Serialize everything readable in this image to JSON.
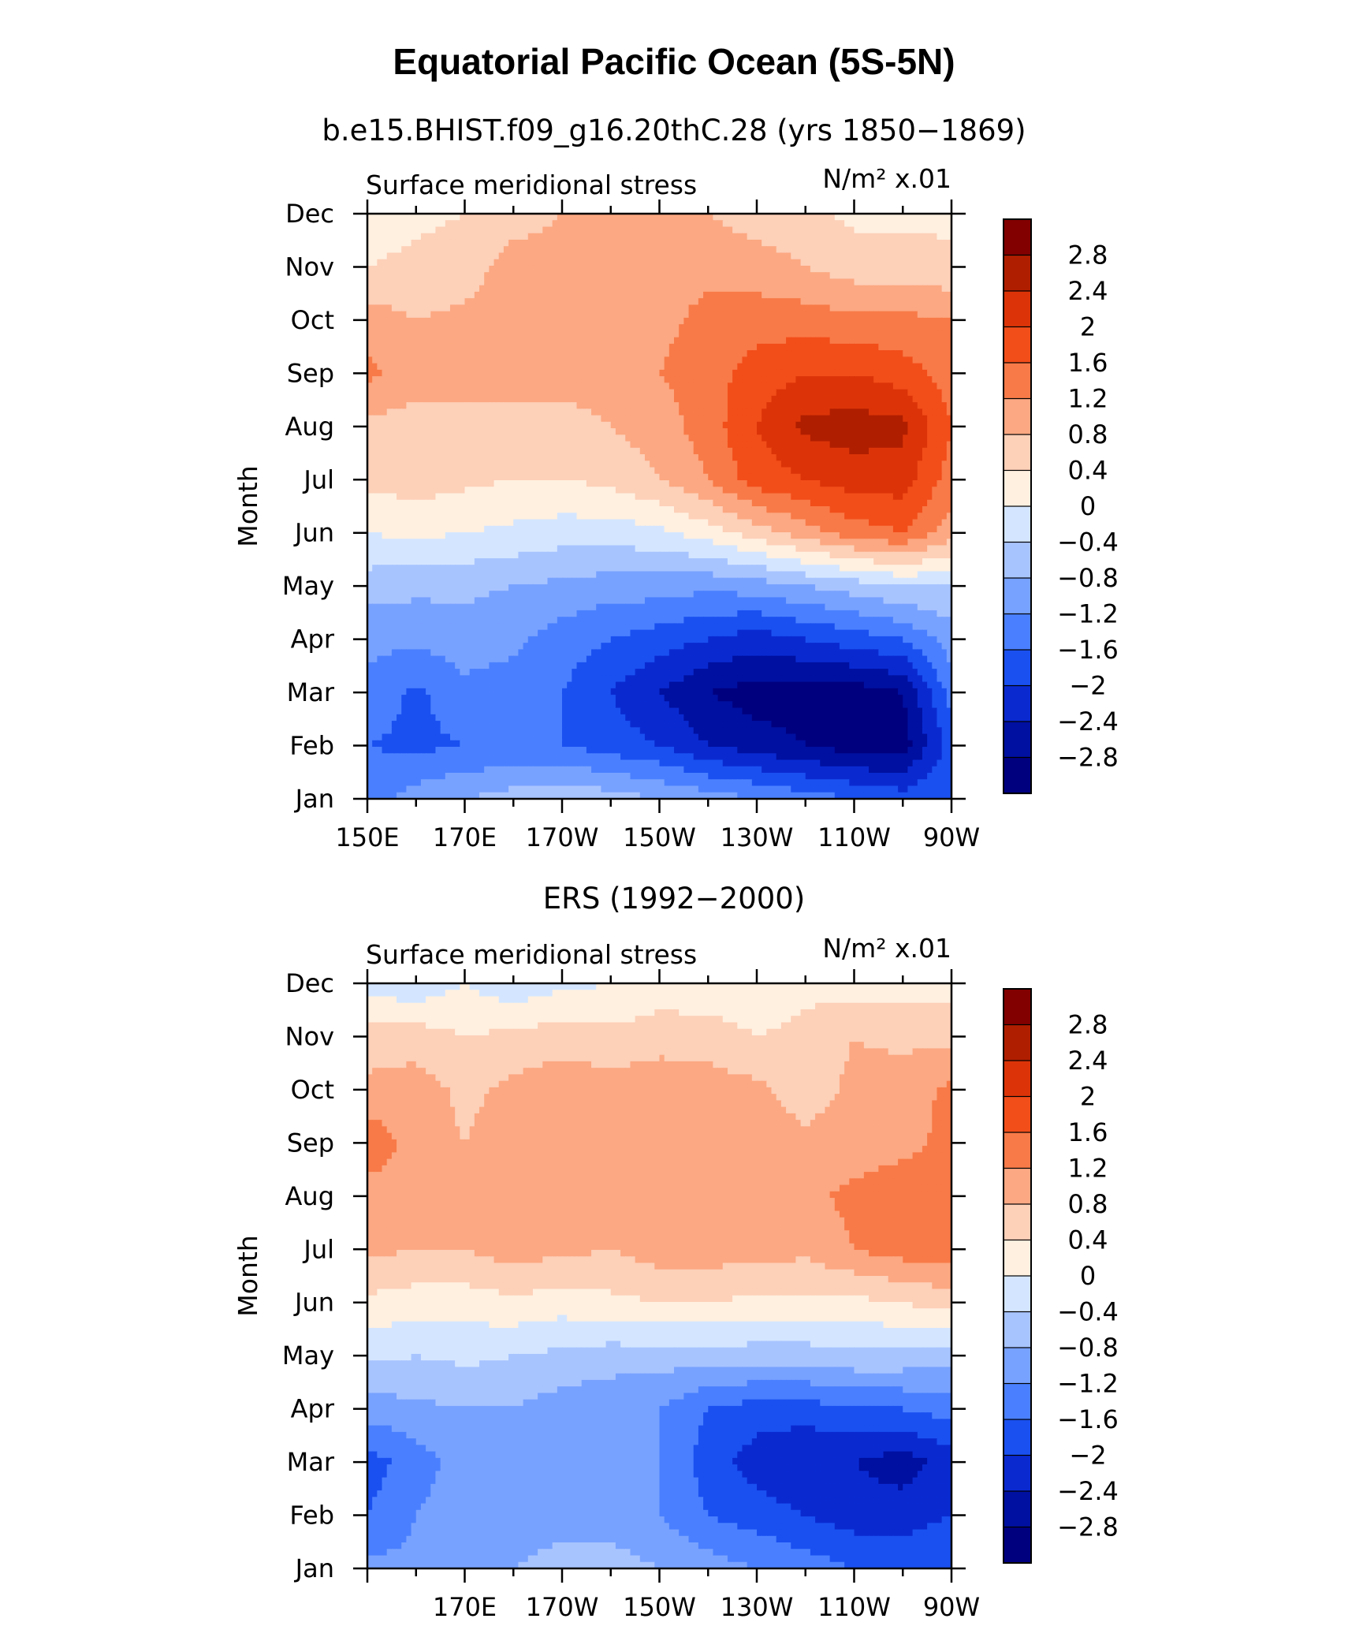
{
  "title": "Equatorial Pacific Ocean (5S-5N)",
  "months": [
    "Jan",
    "Feb",
    "Mar",
    "Apr",
    "May",
    "Jun",
    "Jul",
    "Aug",
    "Sep",
    "Oct",
    "Nov",
    "Dec"
  ],
  "y_axis_label": "Month",
  "variable_label": "Surface meridional stress",
  "units_label": "N/m² x.01",
  "colorbar": {
    "levels": [
      -2.8,
      -2.4,
      -2,
      -1.6,
      -1.2,
      -0.8,
      -0.4,
      0,
      0.4,
      0.8,
      1.2,
      1.6,
      2,
      2.4,
      2.8
    ],
    "labels": [
      "2.8",
      "2.4",
      "2",
      "1.6",
      "1.2",
      "0.8",
      "0.4",
      "0",
      "−0.4",
      "−0.8",
      "−1.2",
      "−1.6",
      "−2",
      "−2.4",
      "−2.8"
    ],
    "colors": [
      "#00007f",
      "#0010a0",
      "#0a2ad0",
      "#1a50f0",
      "#4a80ff",
      "#78a2ff",
      "#a8c4ff",
      "#d4e6ff",
      "#fff0e0",
      "#fdd0b8",
      "#fca882",
      "#f87a48",
      "#f24e1a",
      "#dc3408",
      "#b01e00",
      "#820000"
    ]
  },
  "chart_data": [
    {
      "type": "heatmap",
      "subtitle": "b.e15.BHIST.f09_g16.20thC.28 (yrs 1850−1869)",
      "xlabel": "",
      "ylabel": "Month",
      "x_tick_labels": [
        "150E",
        "170E",
        "170W",
        "150W",
        "130W",
        "110W",
        "90W"
      ],
      "x_tick_values": [
        150,
        170,
        190,
        210,
        230,
        250,
        270
      ],
      "xlim": [
        150,
        270
      ],
      "x": [
        150,
        160,
        170,
        180,
        190,
        200,
        210,
        220,
        230,
        240,
        250,
        260,
        270
      ],
      "y": [
        "Jan",
        "Feb",
        "Mar",
        "Apr",
        "May",
        "Jun",
        "Jul",
        "Aug",
        "Sep",
        "Oct",
        "Nov",
        "Dec"
      ],
      "z": [
        [
          -1.4,
          -1.0,
          -0.8,
          -0.6,
          -0.5,
          -0.6,
          -0.8,
          -1.0,
          -1.2,
          -1.4,
          -1.6,
          -1.8,
          -1.6
        ],
        [
          -1.6,
          -1.7,
          -1.6,
          -1.6,
          -1.6,
          -1.8,
          -2.0,
          -2.4,
          -2.6,
          -2.8,
          -3.0,
          -3.0,
          -1.8
        ],
        [
          -1.3,
          -1.7,
          -1.3,
          -1.4,
          -1.6,
          -2.0,
          -2.4,
          -2.8,
          -3.0,
          -3.0,
          -3.0,
          -2.8,
          -1.4
        ],
        [
          -1.1,
          -1.1,
          -1.0,
          -1.1,
          -1.4,
          -1.6,
          -1.8,
          -2.0,
          -2.2,
          -2.0,
          -1.8,
          -1.6,
          -1.0
        ],
        [
          -0.6,
          -0.7,
          -0.7,
          -0.8,
          -0.9,
          -1.0,
          -1.0,
          -1.1,
          -1.0,
          -0.8,
          -0.6,
          -0.4,
          -0.4
        ],
        [
          0.0,
          0.1,
          0.0,
          -0.1,
          -0.2,
          -0.2,
          -0.1,
          0.2,
          0.6,
          1.0,
          1.4,
          1.6,
          1.0
        ],
        [
          0.5,
          0.6,
          0.5,
          0.4,
          0.4,
          0.5,
          0.8,
          1.2,
          1.8,
          2.0,
          2.2,
          2.2,
          1.4
        ],
        [
          0.7,
          0.6,
          0.6,
          0.6,
          0.6,
          0.8,
          1.0,
          1.4,
          2.0,
          2.5,
          2.6,
          2.5,
          1.6
        ],
        [
          1.3,
          1.0,
          1.0,
          1.0,
          1.0,
          1.0,
          1.2,
          1.4,
          1.8,
          2.0,
          2.0,
          1.8,
          1.4
        ],
        [
          1.0,
          0.8,
          0.9,
          1.0,
          1.0,
          1.0,
          1.1,
          1.3,
          1.4,
          1.4,
          1.3,
          1.3,
          1.2
        ],
        [
          0.4,
          0.5,
          0.6,
          1.0,
          1.0,
          1.1,
          1.1,
          1.1,
          1.0,
          0.8,
          0.6,
          0.6,
          0.5
        ],
        [
          0.2,
          0.3,
          0.4,
          0.6,
          0.8,
          0.9,
          0.9,
          0.8,
          0.6,
          0.5,
          0.3,
          0.3,
          0.3
        ]
      ],
      "units": "N/m² x.01",
      "title": "Surface meridional stress"
    },
    {
      "type": "heatmap",
      "subtitle": "ERS (1992−2000)",
      "xlabel": "",
      "ylabel": "Month",
      "x_tick_labels": [
        "170E",
        "170W",
        "150W",
        "130W",
        "110W",
        "90W"
      ],
      "x_tick_values": [
        170,
        190,
        210,
        230,
        250,
        270
      ],
      "xlim": [
        150,
        270
      ],
      "x": [
        150,
        160,
        170,
        180,
        190,
        200,
        210,
        220,
        230,
        240,
        250,
        260,
        270
      ],
      "y": [
        "Jan",
        "Feb",
        "Mar",
        "Apr",
        "May",
        "Jun",
        "Jul",
        "Aug",
        "Sep",
        "Oct",
        "Nov",
        "Dec"
      ],
      "z": [
        [
          -1.1,
          -1.1,
          -0.9,
          -0.8,
          -0.6,
          -0.6,
          -0.8,
          -1.0,
          -1.2,
          -1.4,
          -1.6,
          -1.7,
          -1.6
        ],
        [
          -1.6,
          -1.2,
          -1.0,
          -1.1,
          -1.0,
          -1.0,
          -1.2,
          -1.6,
          -1.8,
          -2.0,
          -2.2,
          -2.2,
          -2.0
        ],
        [
          -1.8,
          -1.4,
          -1.0,
          -0.9,
          -1.0,
          -1.0,
          -1.2,
          -1.8,
          -2.2,
          -2.4,
          -2.4,
          -2.6,
          -2.2
        ],
        [
          -1.0,
          -0.9,
          -0.8,
          -0.8,
          -1.0,
          -1.1,
          -1.2,
          -1.6,
          -1.8,
          -1.8,
          -1.6,
          -1.6,
          -1.4
        ],
        [
          -0.3,
          -0.4,
          -0.3,
          -0.4,
          -0.5,
          -0.6,
          -0.6,
          -0.6,
          -0.6,
          -0.6,
          -0.5,
          -0.5,
          -0.6
        ],
        [
          0.3,
          0.2,
          0.2,
          0.3,
          0.2,
          0.3,
          0.4,
          0.4,
          0.3,
          0.3,
          0.3,
          0.4,
          0.6
        ],
        [
          0.9,
          0.8,
          0.8,
          1.0,
          0.9,
          0.8,
          1.0,
          1.0,
          1.0,
          0.9,
          1.2,
          1.4,
          1.4
        ],
        [
          1.0,
          1.1,
          1.0,
          1.1,
          1.0,
          1.1,
          1.1,
          1.0,
          1.0,
          1.1,
          1.3,
          1.4,
          1.3
        ],
        [
          1.5,
          1.0,
          0.8,
          1.0,
          1.1,
          1.0,
          1.1,
          1.0,
          1.0,
          0.9,
          1.0,
          1.1,
          1.3
        ],
        [
          0.9,
          1.0,
          0.7,
          0.9,
          1.1,
          1.0,
          1.1,
          1.0,
          0.9,
          0.6,
          0.9,
          1.0,
          1.3
        ],
        [
          0.6,
          0.6,
          0.4,
          0.5,
          0.6,
          0.5,
          0.6,
          0.6,
          0.4,
          0.5,
          0.8,
          0.7,
          0.7
        ],
        [
          -0.2,
          -0.3,
          0.0,
          -0.3,
          -0.1,
          0.0,
          0.2,
          0.1,
          0.1,
          0.3,
          0.2,
          0.2,
          0.2
        ]
      ],
      "units": "N/m² x.01",
      "title": "Surface meridional stress"
    }
  ]
}
